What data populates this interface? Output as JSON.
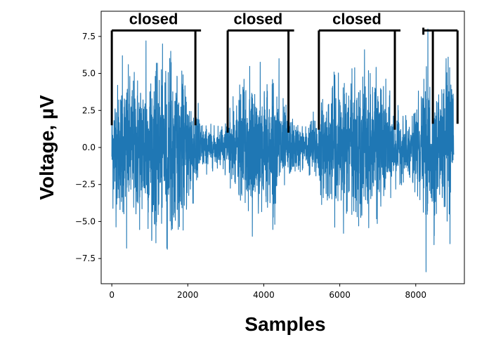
{
  "chart_data": {
    "type": "line",
    "title": "",
    "xlabel": "Samples",
    "ylabel": "Voltage, µV",
    "xlim": [
      -280,
      9280
    ],
    "ylim": [
      -9.2,
      9.2
    ],
    "x_ticks": [
      0,
      2000,
      4000,
      6000,
      8000
    ],
    "x_tick_labels": [
      "0",
      "2000",
      "4000",
      "6000",
      "8000"
    ],
    "y_ticks": [
      -7.5,
      -5.0,
      -2.5,
      0.0,
      2.5,
      5.0,
      7.5
    ],
    "y_tick_labels": [
      "−7.5",
      "−5.0",
      "−2.5",
      "0.0",
      "2.5",
      "5.0",
      "7.5"
    ],
    "grid": false,
    "legend": "none",
    "series_color": "#1f77b4",
    "series": [
      {
        "name": "",
        "x_range": [
          0,
          9000
        ],
        "envelope": [
          {
            "x": 0,
            "amp": 5.5
          },
          {
            "x": 300,
            "amp": 6.0
          },
          {
            "x": 900,
            "amp": 7.0
          },
          {
            "x": 1500,
            "amp": 7.0
          },
          {
            "x": 2100,
            "amp": 5.5
          },
          {
            "x": 2400,
            "amp": 2.0
          },
          {
            "x": 2800,
            "amp": 1.6
          },
          {
            "x": 3100,
            "amp": 3.0
          },
          {
            "x": 3600,
            "amp": 6.0
          },
          {
            "x": 4300,
            "amp": 5.5
          },
          {
            "x": 4700,
            "amp": 2.5
          },
          {
            "x": 5100,
            "amp": 1.8
          },
          {
            "x": 5500,
            "amp": 4.0
          },
          {
            "x": 6000,
            "amp": 6.0
          },
          {
            "x": 7000,
            "amp": 6.0
          },
          {
            "x": 7500,
            "amp": 3.0
          },
          {
            "x": 7800,
            "amp": 2.2
          },
          {
            "x": 8200,
            "amp": 5.0
          },
          {
            "x": 8400,
            "amp": 7.0
          },
          {
            "x": 9000,
            "amp": 6.0
          }
        ],
        "spikes": [
          {
            "x": 280,
            "y": 6.2
          },
          {
            "x": 390,
            "y": -6.8
          },
          {
            "x": 900,
            "y": 7.2
          },
          {
            "x": 1450,
            "y": -6.8
          },
          {
            "x": 1550,
            "y": 6.5
          },
          {
            "x": 3700,
            "y": -6.0
          },
          {
            "x": 4400,
            "y": 6.0
          },
          {
            "x": 6100,
            "y": -5.8
          },
          {
            "x": 6650,
            "y": 6.6
          },
          {
            "x": 8270,
            "y": -8.4
          },
          {
            "x": 8320,
            "y": 8.0
          },
          {
            "x": 8800,
            "y": 6.0
          },
          {
            "x": 8900,
            "y": -6.5
          }
        ]
      }
    ],
    "annotations": [
      {
        "label": "closed",
        "x_start": 0,
        "x_end": 2200,
        "y_top": 7.9,
        "y_bottom": 1.5
      },
      {
        "label": "closed",
        "x_start": 3050,
        "x_end": 4650,
        "y_top": 7.9,
        "y_bottom": 1.0
      },
      {
        "label": "closed",
        "x_start": 5450,
        "x_end": 7450,
        "y_top": 7.9,
        "y_bottom": 1.2
      },
      {
        "label": "",
        "x_start": 8450,
        "x_end": 9100,
        "y_top": 7.9,
        "y_bottom": 1.6,
        "left_stub_x": 8200
      }
    ]
  }
}
